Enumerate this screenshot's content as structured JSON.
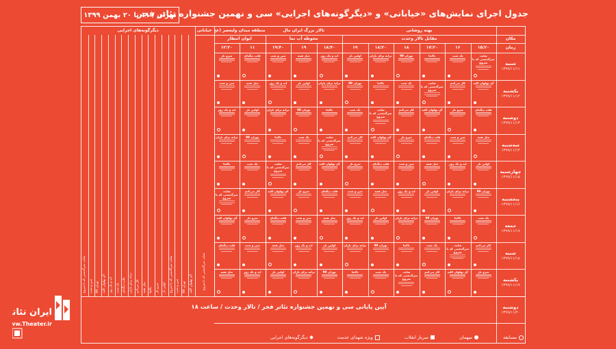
{
  "title": "جدول اجرای نمایش‌های «خیابانی» و «دیگرگونه‌های اجرایی» سی و نهمین جشنواره تئاتر فجر",
  "date_range": "تهران / ۱۱ تا ۲۰ بهمن ۱۳۹۹",
  "headers": {
    "place_label": "مکان",
    "time_label": "زمان",
    "venue_main": "بهنه روشانی",
    "venue_main_sub": "مقابل تالار وحدت",
    "venue_mall": "تالار بزرگ ایران مال",
    "venue_mall_sub": "محوطه آب نما",
    "venue_center": "منطقه میدان ولیعصر (عج)",
    "venue_center_sub": "ایوان انتظار",
    "street_col": "خیابانی",
    "other_col": "دیگرگونه‌های اجرایی"
  },
  "times": [
    "۱۵:۲۰",
    "۱۶",
    "۱۷:۲۰",
    "۱۸",
    "۱۸:۲۰",
    "۱۹",
    "۱۸:۴۰",
    "۱۹",
    "۱۹:۴۰",
    "۱۱",
    "۱۲:۲۰"
  ],
  "days": [
    {
      "name": "شنبه",
      "date": "۱۳۹۹/۱۱/۱۱"
    },
    {
      "name": "یکشنبه",
      "date": "۱۳۹۹/۱۱/۱۲"
    },
    {
      "name": "دوشنبه",
      "date": "۱۳۹۹/۱۱/۱۳"
    },
    {
      "name": "سه‌شنبه",
      "date": "۱۳۹۹/۱۱/۱۴"
    },
    {
      "name": "چهارشنبه",
      "date": "۱۳۹۹/۱۱/۱۵"
    },
    {
      "name": "پنجشنبه",
      "date": "۱۳۹۹/۱۱/۱۶"
    },
    {
      "name": "جمعه",
      "date": "۱۳۹۹/۱۱/۱۷"
    },
    {
      "name": "شنبه",
      "date": "۱۳۹۹/۱۱/۱۸"
    },
    {
      "name": "یکشنبه",
      "date": "۱۳۹۹/۱۱/۱۹"
    },
    {
      "name": "دوشنبه",
      "date": "۱۳۹۹/۱۱/۲۰"
    }
  ],
  "shows": [
    "شاید، سرگذشتی که با شروع",
    "سن و شب",
    "تهران 99",
    "آی پهلوان کلید",
    "ابد و یک روز",
    "یک شب",
    "قلب دیگه‌ای",
    "ترانه برای باران",
    "کار می‌کنم",
    "مثل همه",
    "ناکجا",
    "سرو ناز",
    "اولین بار"
  ],
  "closing_line": "آیین پایانی سی و نهمین جشنواره تئاتر فجر / تالار وحدت / ساعت ۱۸",
  "legend": [
    {
      "label": "مسابقه",
      "symbol": "circle-outline"
    },
    {
      "label": "میهمان",
      "symbol": "circle-dot"
    },
    {
      "label": "سرباز انقلاب",
      "symbol": "square"
    },
    {
      "label": "ویژه شهدای خدمت",
      "symbol": "square-outline"
    },
    {
      "label": "دیگرگونه‌های اجرایی",
      "symbol": "diamond"
    }
  ],
  "logo": {
    "text": "ایران تئاتر",
    "url": "www.Theater.ir"
  },
  "colors": {
    "background": "#ec4a33",
    "foreground": "#ffffff"
  }
}
